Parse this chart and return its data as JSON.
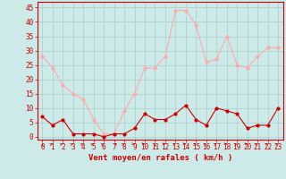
{
  "hours": [
    0,
    1,
    2,
    3,
    4,
    5,
    6,
    7,
    8,
    9,
    10,
    11,
    12,
    13,
    14,
    15,
    16,
    17,
    18,
    19,
    20,
    21,
    22,
    23
  ],
  "avg_wind": [
    7,
    4,
    6,
    1,
    1,
    1,
    0,
    1,
    1,
    3,
    8,
    6,
    6,
    8,
    11,
    6,
    4,
    10,
    9,
    8,
    3,
    4,
    4,
    10
  ],
  "gust_wind": [
    28,
    24,
    18,
    15,
    13,
    6,
    1,
    1,
    9,
    15,
    24,
    24,
    28,
    44,
    44,
    39,
    26,
    27,
    35,
    25,
    24,
    28,
    31,
    31
  ],
  "avg_color": "#cc0000",
  "gust_color": "#ffaaaa",
  "bg_color": "#cceae8",
  "grid_color": "#aacccc",
  "xlabel": "Vent moyen/en rafales ( km/h )",
  "xlabel_color": "#cc0000",
  "yticks": [
    0,
    5,
    10,
    15,
    20,
    25,
    30,
    35,
    40,
    45
  ],
  "ylim": [
    -1,
    47
  ],
  "xlim": [
    -0.5,
    23.5
  ],
  "tick_fontsize": 5.5,
  "xlabel_fontsize": 6.5
}
